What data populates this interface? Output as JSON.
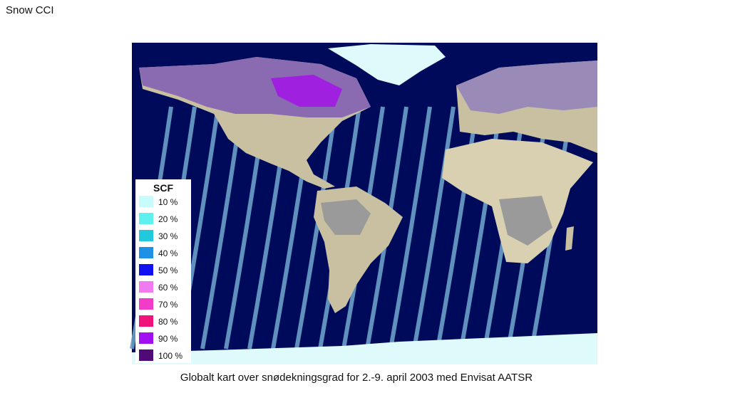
{
  "header": {
    "title": "Snow CCI"
  },
  "legend": {
    "title": "SCF",
    "items": [
      {
        "label": "10 %",
        "color": "#c8fbfb"
      },
      {
        "label": "20 %",
        "color": "#5ff0f0"
      },
      {
        "label": "30 %",
        "color": "#22c8dc"
      },
      {
        "label": "40 %",
        "color": "#1e90e6"
      },
      {
        "label": "50 %",
        "color": "#1010f0"
      },
      {
        "label": "60 %",
        "color": "#f07af0"
      },
      {
        "label": "70 %",
        "color": "#f03cc8"
      },
      {
        "label": "80 %",
        "color": "#f0147a"
      },
      {
        "label": "90 %",
        "color": "#a010f0"
      },
      {
        "label": "100 %",
        "color": "#500a78"
      }
    ]
  },
  "caption": "Globalt kart over snødekningsgrad for 2.-9. april 2003 med Envisat AATSR"
}
